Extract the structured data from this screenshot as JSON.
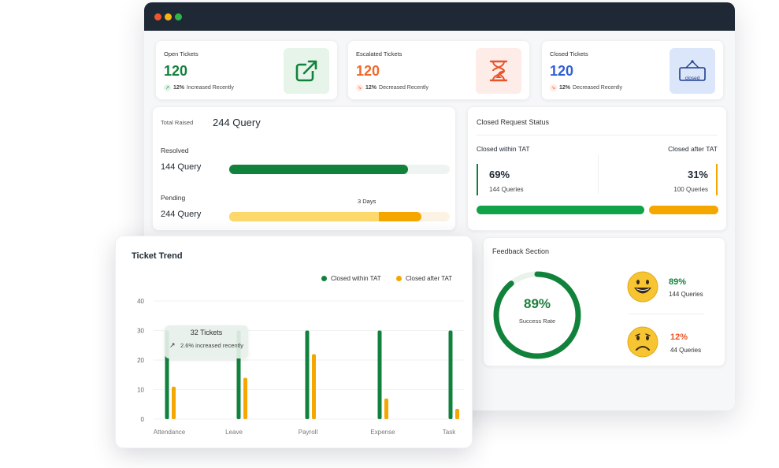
{
  "colors": {
    "green": "#11823b",
    "orange": "#f08a24",
    "blue": "#2f5fd8",
    "amber": "#f5a700",
    "light_amber": "#fcd96a",
    "red_text": "#e8542a"
  },
  "stats": [
    {
      "label": "Open Tickets",
      "value": "120",
      "pct": "12%",
      "trend_text": "Increased Recently",
      "icon": "external-link-icon",
      "value_color": "#11823b"
    },
    {
      "label": "Escalated Tickets",
      "value": "120",
      "pct": "12%",
      "trend_text": "Decreased Recently",
      "icon": "hourglass-icon",
      "value_color": "#f0682a"
    },
    {
      "label": "Closed Tickets",
      "value": "120",
      "pct": "12%",
      "trend_text": "Decreased Recently",
      "icon": "closed-sign-icon",
      "icon_text": "closed",
      "value_color": "#2f5fd8"
    }
  ],
  "query": {
    "total_label": "Total Raised",
    "total_value": "244 Query",
    "resolved_label": "Resolved",
    "resolved_value": "144 Query",
    "resolved_fraction": 0.81,
    "pending_label": "Pending",
    "pending_value": "244 Query",
    "pending_fraction": 0.87,
    "pending_light_fraction": 0.68,
    "days_label": "3 Days"
  },
  "status": {
    "title": "Closed Request Status",
    "within_label": "Closed within TAT",
    "after_label": "Closed after TAT",
    "within_pct": "69%",
    "within_queries": "144 Queries",
    "after_pct": "31%",
    "after_queries": "100 Queries",
    "within_fraction": 0.69
  },
  "feedback": {
    "title": "Feedback Section",
    "rate_pct": "89%",
    "rate_label": "Success Rate",
    "rate_fraction": 0.89,
    "happy_pct": "89%",
    "happy_queries": "144 Queries",
    "sad_pct": "12%",
    "sad_queries": "44 Queries",
    "happy_icon": "happy-face-icon",
    "sad_icon": "sad-face-icon"
  },
  "ticket_trend": {
    "title": "Ticket Trend",
    "tooltip_title": "32 Tickets",
    "tooltip_text": "2.6% increased recently"
  },
  "chart_data": {
    "type": "bar",
    "title": "Ticket Trend",
    "categories": [
      "Attendance",
      "Leave",
      "Payroll",
      "Expense",
      "Task"
    ],
    "series": [
      {
        "name": "Closed within TAT",
        "color": "#11823b",
        "values": [
          30,
          30,
          30,
          30,
          30
        ]
      },
      {
        "name": "Closed after TAT",
        "color": "#f5a700",
        "values": [
          11,
          14,
          22,
          7,
          3.5
        ]
      }
    ],
    "yticks": [
      "0",
      "10",
      "20",
      "30",
      "40"
    ],
    "ylim": [
      0,
      40
    ],
    "grid": true,
    "legend": "top-right"
  }
}
